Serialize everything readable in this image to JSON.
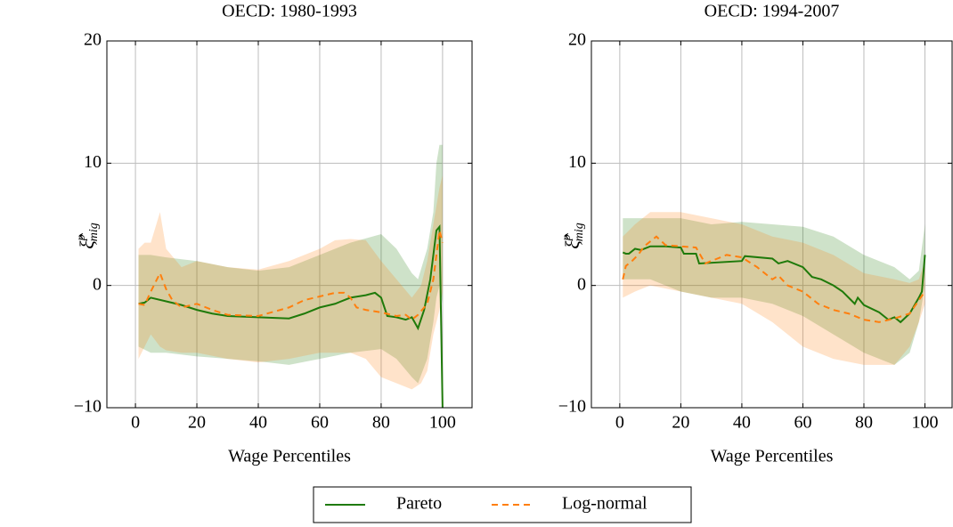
{
  "chart_data": [
    {
      "type": "line",
      "title": "OECD: 1980-1993",
      "xlabel": "Wage Percentiles",
      "ylabel": {
        "base": "ξ̂",
        "sup": "p",
        "sub": "mig"
      },
      "xlim": [
        -9.3,
        109.6
      ],
      "ylim": [
        -10,
        20
      ],
      "xticks": [
        0,
        20,
        40,
        60,
        80,
        100
      ],
      "yticks": [
        {
          "value": -10,
          "label": "−10"
        },
        0,
        10,
        20
      ],
      "grid": true,
      "legend": "below",
      "series": [
        {
          "name": "Pareto",
          "color": "#1f7a0a",
          "dash": false,
          "x": [
            1,
            3,
            5,
            10,
            15,
            20,
            25,
            30,
            40,
            50,
            55,
            60,
            65,
            70,
            75,
            78,
            80,
            82,
            85,
            88,
            90,
            92,
            94,
            96,
            97,
            98,
            99,
            100
          ],
          "values": [
            -1.5,
            -1.4,
            -1.0,
            -1.3,
            -1.6,
            -2.0,
            -2.3,
            -2.5,
            -2.6,
            -2.7,
            -2.3,
            -1.8,
            -1.5,
            -1.0,
            -0.8,
            -0.6,
            -1.0,
            -2.5,
            -2.6,
            -2.8,
            -2.6,
            -3.5,
            -2.0,
            0.5,
            2.5,
            4.5,
            4.8,
            -10
          ],
          "band": {
            "x": [
              1,
              5,
              10,
              20,
              30,
              40,
              50,
              60,
              70,
              80,
              85,
              90,
              92,
              95,
              97,
              98,
              99,
              100
            ],
            "upper": [
              2.5,
              2.5,
              2.3,
              2.0,
              1.5,
              1.2,
              1.5,
              2.5,
              3.5,
              4.2,
              3.0,
              1.0,
              0.5,
              3,
              6,
              10,
              11.5,
              11.5
            ],
            "lower": [
              -5,
              -5.5,
              -5.5,
              -5.8,
              -6,
              -6.2,
              -6.5,
              -6,
              -5.5,
              -5.2,
              -6,
              -7.5,
              -8,
              -6,
              -3,
              -1,
              0,
              -1.5
            ]
          }
        },
        {
          "name": "Log-normal",
          "color": "#ff7f0e",
          "dash": true,
          "x": [
            1,
            3,
            5,
            8,
            10,
            12,
            15,
            20,
            25,
            30,
            40,
            50,
            55,
            60,
            65,
            68,
            70,
            72,
            75,
            80,
            85,
            88,
            90,
            92,
            95,
            97,
            98,
            99,
            100
          ],
          "values": [
            -1.5,
            -1.6,
            -0.5,
            1.0,
            -0.3,
            -1.2,
            -1.8,
            -1.5,
            -2.0,
            -2.4,
            -2.5,
            -1.8,
            -1.2,
            -0.9,
            -0.6,
            -0.6,
            -1.0,
            -1.8,
            -2.0,
            -2.2,
            -2.5,
            -2.4,
            -2.8,
            -2.4,
            -1.5,
            0.5,
            2.5,
            4.5,
            3.5
          ],
          "band": {
            "x": [
              1,
              3,
              5,
              8,
              10,
              15,
              20,
              30,
              40,
              50,
              60,
              65,
              70,
              75,
              80,
              85,
              90,
              93,
              95,
              97,
              99,
              100
            ],
            "upper": [
              3,
              3.5,
              3.5,
              6,
              3,
              1.5,
              2,
              1.5,
              1.3,
              2,
              3,
              3.7,
              3.8,
              3.7,
              2.0,
              0.5,
              -1,
              0,
              2,
              5,
              8,
              9
            ],
            "lower": [
              -6,
              -5,
              -4,
              -5,
              -5.3,
              -5.5,
              -5.5,
              -6,
              -6.3,
              -6,
              -5.5,
              -5.5,
              -5.5,
              -6,
              -7.5,
              -8,
              -8.5,
              -8,
              -7,
              -4,
              -2,
              -0.5
            ]
          }
        }
      ]
    },
    {
      "type": "line",
      "title": "OECD: 1994-2007",
      "xlabel": "Wage Percentiles",
      "ylabel": {
        "base": "ξ̂",
        "sup": "p",
        "sub": "mig"
      },
      "xlim": [
        -9.3,
        108.9
      ],
      "ylim": [
        -10,
        20
      ],
      "xticks": [
        0,
        20,
        40,
        60,
        80,
        100
      ],
      "yticks": [
        {
          "value": -10,
          "label": "−10"
        },
        0,
        10,
        20
      ],
      "grid": true,
      "series": [
        {
          "name": "Pareto",
          "color": "#1f7a0a",
          "dash": false,
          "x": [
            1,
            2,
            3,
            5,
            7,
            10,
            15,
            20,
            21,
            25,
            26,
            40,
            41,
            50,
            52,
            55,
            60,
            63,
            66,
            70,
            73,
            77,
            78,
            80,
            85,
            88,
            90,
            92,
            95,
            98,
            99,
            100
          ],
          "values": [
            2.7,
            2.6,
            2.6,
            3.0,
            2.9,
            3.2,
            3.2,
            3.1,
            2.6,
            2.6,
            1.8,
            2.0,
            2.4,
            2.2,
            1.8,
            2.0,
            1.5,
            0.7,
            0.5,
            0.0,
            -0.5,
            -1.5,
            -1.0,
            -1.6,
            -2.2,
            -2.8,
            -2.6,
            -3.0,
            -2.3,
            -1.0,
            -0.5,
            2.5
          ],
          "band": {
            "x": [
              1,
              5,
              10,
              20,
              30,
              40,
              50,
              60,
              70,
              80,
              90,
              95,
              98,
              100
            ],
            "upper": [
              5.5,
              5.5,
              5.5,
              5.5,
              5.0,
              5.2,
              5.0,
              4.8,
              4.0,
              2.5,
              1.5,
              0.5,
              1.2,
              5
            ],
            "lower": [
              0.5,
              0.5,
              0.5,
              -0.5,
              -1,
              -1,
              -1.5,
              -2.5,
              -4,
              -5.5,
              -6.5,
              -5.5,
              -3,
              0
            ]
          }
        },
        {
          "name": "Log-normal",
          "color": "#ff7f0e",
          "dash": true,
          "x": [
            1,
            2,
            4,
            6,
            8,
            12,
            15,
            20,
            25,
            28,
            30,
            35,
            40,
            45,
            50,
            52,
            55,
            60,
            65,
            70,
            75,
            80,
            85,
            90,
            95,
            98,
            100
          ],
          "values": [
            0.5,
            1.6,
            2.0,
            2.5,
            3.2,
            4.0,
            3.3,
            3.2,
            3.1,
            1.8,
            2.0,
            2.5,
            2.3,
            1.5,
            0.5,
            0.8,
            0.0,
            -0.5,
            -1.5,
            -2.0,
            -2.3,
            -2.8,
            -3.0,
            -2.7,
            -2.3,
            -1.2,
            -0.5
          ],
          "band": {
            "x": [
              1,
              5,
              10,
              20,
              30,
              40,
              50,
              60,
              70,
              80,
              90,
              95,
              98,
              100
            ],
            "upper": [
              4,
              5,
              6,
              6,
              5.5,
              5,
              4,
              3.5,
              2.5,
              1,
              0.5,
              0.2,
              0.5,
              2
            ],
            "lower": [
              -1,
              -0.5,
              0,
              -0.5,
              -1,
              -1.5,
              -3,
              -5,
              -6,
              -6.5,
              -6.5,
              -5,
              -3,
              -1.5
            ]
          }
        }
      ]
    }
  ]
}
